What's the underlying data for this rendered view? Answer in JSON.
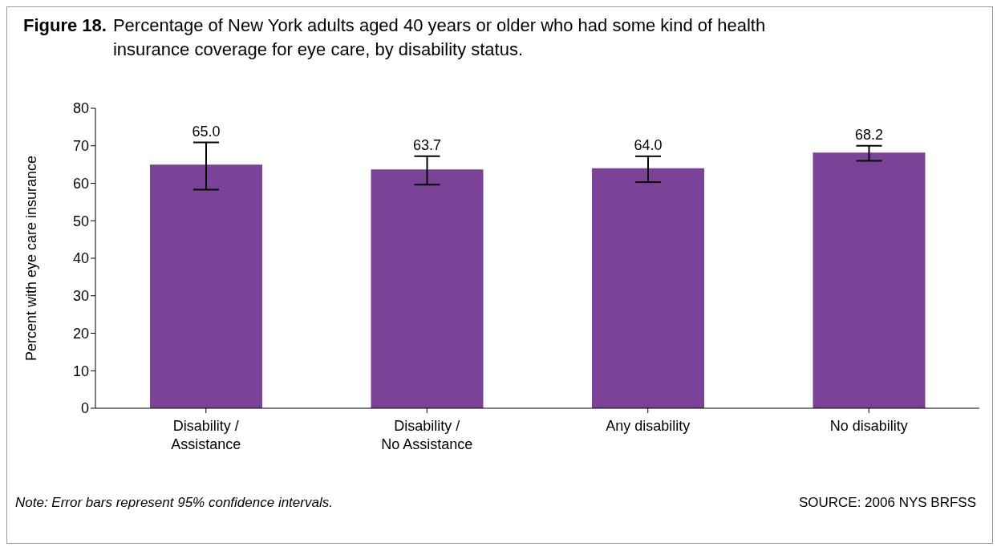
{
  "chart_data": {
    "type": "bar",
    "title": "Figure 18. Percentage of New York adults aged 40 years or older who had some kind of health insurance coverage for eye care, by disability status.",
    "ylabel": "Percent with eye care insurance",
    "categories": [
      "Disability / Assistance",
      "Disability / No Assistance",
      "Any disability",
      "No disability"
    ],
    "values": [
      65.0,
      63.7,
      64.0,
      68.2
    ],
    "errors": [
      [
        58.3,
        70.9
      ],
      [
        59.6,
        67.2
      ],
      [
        60.3,
        67.2
      ],
      [
        66.0,
        70.0
      ]
    ],
    "color": "#7b4397",
    "ylim": [
      0,
      80
    ],
    "yticks": [
      0,
      10,
      20,
      30,
      40,
      50,
      60,
      70,
      80
    ],
    "value_labels": [
      "65.0",
      "63.7",
      "64.0",
      "68.2"
    ],
    "grid": false,
    "legend": false,
    "annotations": [
      "Note: Error bars represent 95% confidence intervals.",
      "SOURCE: 2006 NYS BRFSS"
    ]
  }
}
